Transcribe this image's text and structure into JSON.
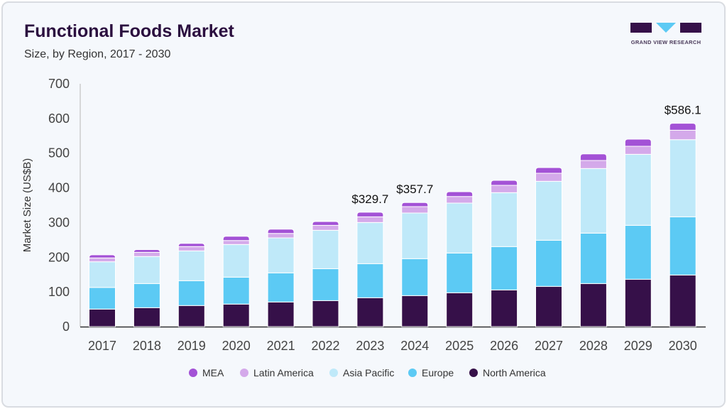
{
  "header": {
    "title": "Functional Foods Market",
    "subtitle": "Size, by Region, 2017 - 2030"
  },
  "logo": {
    "text": "GRAND VIEW RESEARCH"
  },
  "chart_data": {
    "type": "bar",
    "stacked": true,
    "title": "Functional Foods Market",
    "subtitle": "Size, by Region, 2017 - 2030",
    "xlabel": "",
    "ylabel": "Market Size (US$B)",
    "ylim": [
      0,
      700
    ],
    "yticks": [
      0,
      100,
      200,
      300,
      400,
      500,
      600,
      700
    ],
    "grid": false,
    "legend": "bottom",
    "categories": [
      "2017",
      "2018",
      "2019",
      "2020",
      "2021",
      "2022",
      "2023",
      "2024",
      "2025",
      "2026",
      "2027",
      "2028",
      "2029",
      "2030"
    ],
    "series": [
      {
        "name": "North America",
        "color": "#361049",
        "values": [
          50.5,
          54.6,
          60.8,
          64.9,
          71.0,
          75.0,
          83.3,
          89.4,
          97.6,
          105.8,
          116.0,
          124.2,
          136.5,
          148.8
        ]
      },
      {
        "name": "Europe",
        "color": "#5ccaf4",
        "values": [
          62.5,
          69.6,
          71.6,
          77.7,
          84.0,
          92.0,
          98.2,
          106.5,
          114.6,
          124.9,
          133.0,
          145.3,
          155.5,
          167.8
        ]
      },
      {
        "name": "Asia Pacific",
        "color": "#bfe9f9",
        "values": [
          74.0,
          78.0,
          86.0,
          94.2,
          100.8,
          110.7,
          118.7,
          131.6,
          143.9,
          155.5,
          169.9,
          186.3,
          204.7,
          222.3
        ]
      },
      {
        "name": "Latin America",
        "color": "#d4a9ea",
        "values": [
          11.0,
          12.0,
          12.3,
          11.5,
          12.9,
          14.3,
          16.4,
          18.4,
          19.1,
          21.1,
          23.2,
          23.1,
          23.2,
          27.4
        ]
      },
      {
        "name": "MEA",
        "color": "#a352d6",
        "values": [
          9.0,
          8.0,
          9.3,
          12.2,
          12.3,
          11.0,
          13.1,
          11.8,
          13.7,
          14.3,
          16.4,
          19.1,
          20.4,
          19.8
        ]
      }
    ],
    "annotations": [
      {
        "category": "2023",
        "text": "$329.7"
      },
      {
        "category": "2024",
        "text": "$357.7"
      },
      {
        "category": "2030",
        "text": "$586.1"
      }
    ],
    "legend_order": [
      "MEA",
      "Latin America",
      "Asia Pacific",
      "Europe",
      "North America"
    ]
  }
}
